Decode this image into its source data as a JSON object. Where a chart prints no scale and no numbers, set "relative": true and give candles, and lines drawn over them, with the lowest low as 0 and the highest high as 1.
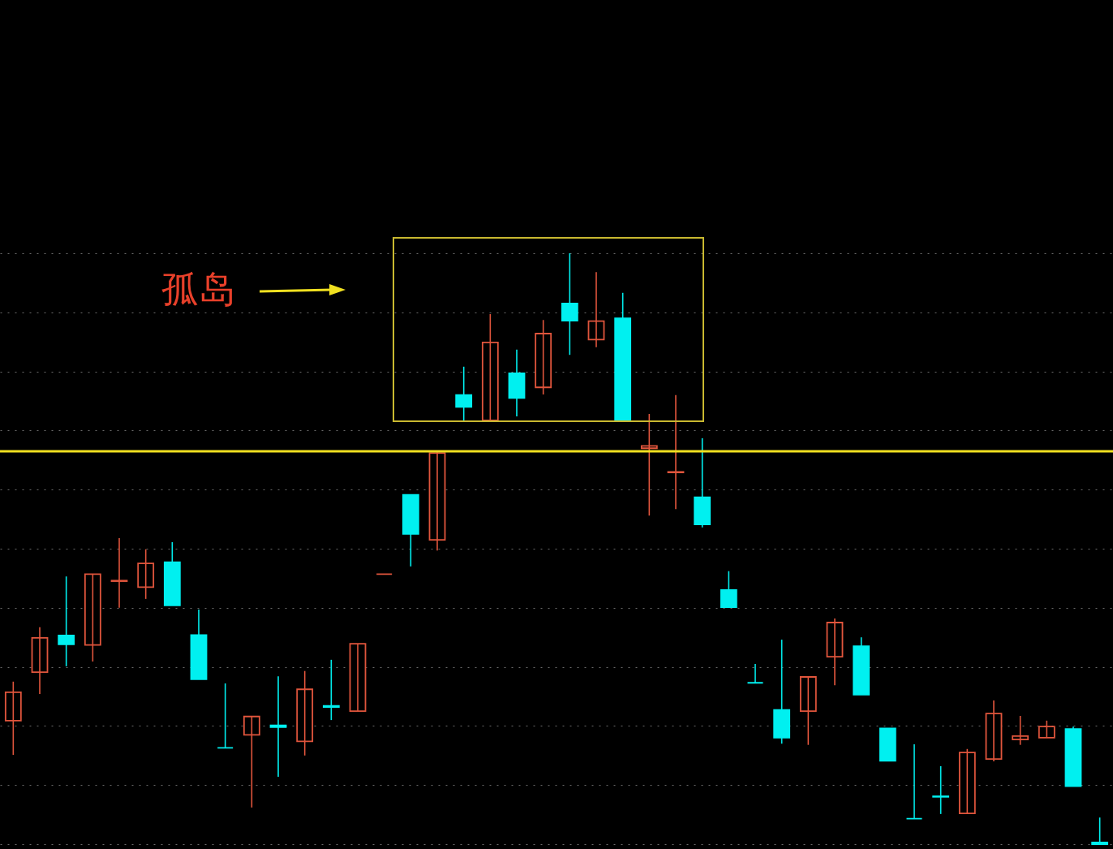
{
  "chart_data": {
    "type": "candlestick",
    "relative": true,
    "grid": "y",
    "categories": [
      null,
      null,
      null,
      null,
      null,
      null,
      null,
      null,
      null,
      null,
      null,
      null,
      null,
      null,
      null,
      null,
      null,
      null,
      null,
      null,
      null,
      null,
      null,
      null,
      null,
      null,
      null,
      null,
      null,
      null,
      null,
      null,
      null,
      null,
      null,
      null,
      null,
      null,
      null,
      null,
      null,
      null
    ],
    "ohlc": [
      [
        0.209,
        0.275,
        0.151,
        0.257
      ],
      [
        0.291,
        0.367,
        0.254,
        0.349
      ],
      [
        0.353,
        0.453,
        0.301,
        0.338
      ],
      [
        0.337,
        0.457,
        0.309,
        0.457
      ],
      [
        0.445,
        0.518,
        0.4,
        0.446
      ],
      [
        0.435,
        0.499,
        0.415,
        0.475
      ],
      [
        0.477,
        0.511,
        0.404,
        0.404
      ],
      [
        0.354,
        0.397,
        0.279,
        0.279
      ],
      [
        0.163,
        0.272,
        0.163,
        0.163
      ],
      [
        0.185,
        0.216,
        0.062,
        0.216
      ],
      [
        0.201,
        0.284,
        0.114,
        0.198
      ],
      [
        0.174,
        0.293,
        0.15,
        0.262
      ],
      [
        0.234,
        0.312,
        0.21,
        0.232
      ],
      [
        0.225,
        0.339,
        0.225,
        0.339
      ],
      [
        0.457,
        0.457,
        0.457,
        0.457
      ],
      [
        0.591,
        0.591,
        0.47,
        0.525
      ],
      [
        0.515,
        0.665,
        0.497,
        0.662
      ],
      [
        0.76,
        0.808,
        0.717,
        0.74
      ],
      [
        0.717,
        0.897,
        0.716,
        0.849
      ],
      [
        0.797,
        0.837,
        0.724,
        0.755
      ],
      [
        0.773,
        0.887,
        0.761,
        0.864
      ],
      [
        0.915,
        1,
        0.828,
        0.886
      ],
      [
        0.854,
        0.968,
        0.841,
        0.885
      ],
      [
        0.89,
        0.933,
        0.716,
        0.716
      ],
      [
        0.67,
        0.728,
        0.556,
        0.674
      ],
      [
        0.629,
        0.76,
        0.567,
        0.63
      ],
      [
        0.587,
        0.687,
        0.536,
        0.541
      ],
      [
        0.43,
        0.462,
        0.401,
        0.401
      ],
      [
        0.273,
        0.305,
        0.273,
        0.273
      ],
      [
        0.227,
        0.346,
        0.17,
        0.18
      ],
      [
        0.225,
        0.283,
        0.168,
        0.283
      ],
      [
        0.317,
        0.382,
        0.269,
        0.375
      ],
      [
        0.335,
        0.35,
        0.253,
        0.253
      ],
      [
        0.196,
        0.196,
        0.141,
        0.141
      ],
      [
        0.043,
        0.169,
        0.043,
        0.043
      ],
      [
        0.081,
        0.132,
        0.051,
        0.08
      ],
      [
        0.052,
        0.161,
        0.052,
        0.155
      ],
      [
        0.144,
        0.243,
        0.14,
        0.221
      ],
      [
        0.177,
        0.217,
        0.168,
        0.183
      ],
      [
        0.18,
        0.209,
        0.18,
        0.199
      ],
      [
        0.195,
        0.199,
        0.098,
        0.098
      ],
      [
        0.003,
        0.045,
        0,
        0
      ]
    ],
    "colors": [
      "#e0553c",
      "#e0553c",
      "#00f0f0",
      "#e0553c",
      "#e0553c",
      "#e0553c",
      "#00f0f0",
      "#00f0f0",
      "#00f0f0",
      "#e0553c",
      "#00f0f0",
      "#e0553c",
      "#00f0f0",
      "#e0553c",
      "#e0553c",
      "#00f0f0",
      "#e0553c",
      "#00f0f0",
      "#e0553c",
      "#00f0f0",
      "#e0553c",
      "#00f0f0",
      "#e0553c",
      "#00f0f0",
      "#e0553c",
      "#e0553c",
      "#00f0f0",
      "#00f0f0",
      "#00f0f0",
      "#00f0f0",
      "#e0553c",
      "#e0553c",
      "#00f0f0",
      "#00f0f0",
      "#00f0f0",
      "#00f0f0",
      "#e0553c",
      "#e0553c",
      "#e0553c",
      "#e0553c",
      "#00f0f0",
      "#00f0f0"
    ],
    "ref_lines": [
      {
        "axis": "y",
        "value": 0.665,
        "color": "#f0e020"
      }
    ],
    "annotations": [
      "孤岛"
    ]
  }
}
